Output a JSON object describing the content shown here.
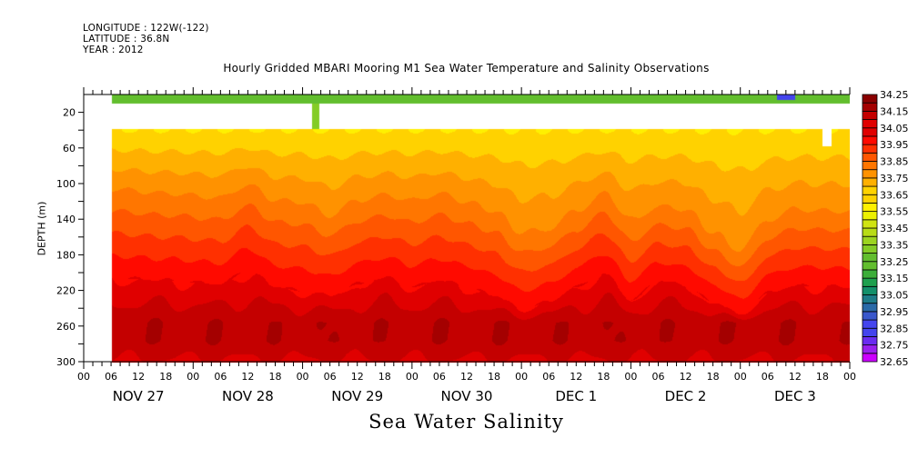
{
  "header": {
    "longitude": "LONGITUDE : 122W(-122)",
    "latitude": "LATITUDE : 36.8N",
    "year": "YEAR : 2012"
  },
  "chart_data": {
    "type": "heatmap",
    "title": "Hourly Gridded MBARI Mooring M1 Sea Water Temperature and Salinity Observations",
    "xlabel": "Sea Water Salinity",
    "ylabel": "DEPTH (m)",
    "ylim": [
      300,
      0
    ],
    "y_ticks": [
      20,
      60,
      100,
      140,
      180,
      220,
      260,
      300
    ],
    "x_hour_ticks": [
      "00",
      "06",
      "12",
      "18",
      "00",
      "06",
      "12",
      "18",
      "00",
      "06",
      "12",
      "18",
      "00",
      "06",
      "12",
      "18",
      "00",
      "06",
      "12",
      "18",
      "00",
      "06",
      "12",
      "18",
      "00",
      "06",
      "12",
      "18",
      "00"
    ],
    "x_day_labels": [
      "NOV 27",
      "NOV 28",
      "NOV 29",
      "NOV 30",
      "DEC  1",
      "DEC  2",
      "DEC  3"
    ],
    "x_range_hours": [
      0,
      168
    ],
    "data_start_hour": 6,
    "colorbar": {
      "levels": [
        32.65,
        32.75,
        32.85,
        32.95,
        33.05,
        33.15,
        33.25,
        33.35,
        33.45,
        33.55,
        33.65,
        33.75,
        33.85,
        33.95,
        34.05,
        34.15,
        34.25
      ],
      "colors": [
        "#cc00ff",
        "#9b1cf0",
        "#6c28f0",
        "#4040f0",
        "#3050d8",
        "#2860b0",
        "#1e7a8c",
        "#169060",
        "#20a050",
        "#50b030",
        "#78c428",
        "#94d024",
        "#b4dc18",
        "#dce810",
        "#f8f800",
        "#ffd400",
        "#ffaa00",
        "#ff8800",
        "#ff6a00",
        "#ff4000",
        "#ff1800",
        "#e80000",
        "#c80000",
        "#a00000"
      ]
    },
    "gaps": [
      {
        "depth_range_m": [
          10,
          38
        ],
        "hours": [
          6,
          168
        ],
        "note": "no data band"
      },
      {
        "depth_range_m": [
          10,
          38
        ],
        "hours": [
          50,
          51.5
        ],
        "filled": true
      },
      {
        "depth_range_m": [
          38,
          57
        ],
        "hours": [
          162,
          164
        ],
        "note": "no data"
      }
    ],
    "surface_band_salinity": 33.35,
    "isohaline_depth_anchors_hours": [
      6,
      18,
      30,
      36,
      42,
      48,
      54,
      60,
      66,
      72,
      78,
      84,
      90,
      96,
      102,
      108,
      114,
      120,
      126,
      132,
      138,
      144,
      150,
      156,
      162,
      168
    ],
    "depth_of_33_65_m": [
      105,
      110,
      115,
      100,
      118,
      120,
      135,
      118,
      112,
      118,
      110,
      120,
      130,
      155,
      150,
      130,
      110,
      140,
      125,
      128,
      155,
      175,
      140,
      128,
      130,
      130
    ],
    "depth_of_34_05_m": [
      205,
      208,
      212,
      196,
      215,
      220,
      225,
      212,
      205,
      215,
      208,
      215,
      225,
      240,
      232,
      215,
      200,
      230,
      208,
      214,
      232,
      246,
      222,
      214,
      214,
      216
    ],
    "deep_max_salinity": 34.25
  }
}
